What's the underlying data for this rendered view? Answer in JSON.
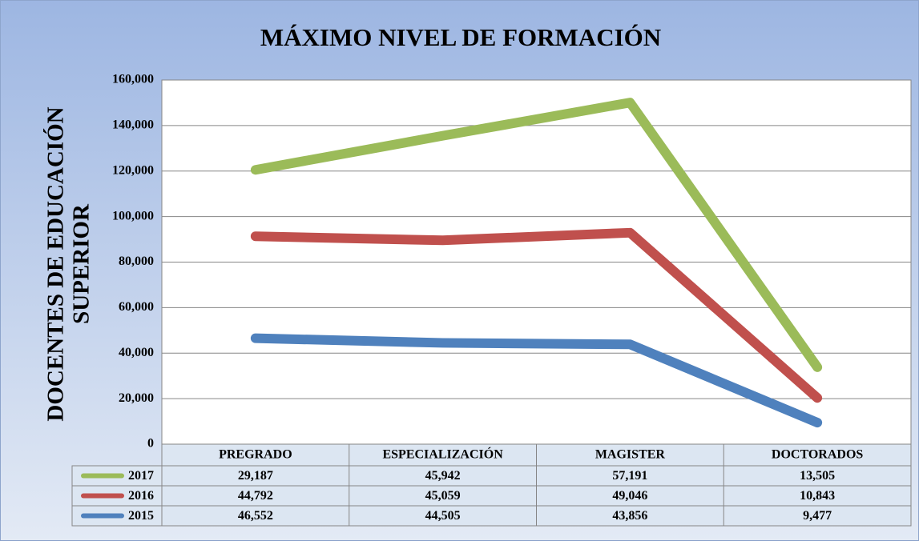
{
  "chart_data": {
    "type": "line",
    "stacked": true,
    "title": "MÁXIMO NIVEL DE FORMACIÓN",
    "y_label": [
      "DOCENTES DE EDUCACIÓN",
      "SUPERIOR"
    ],
    "categories": [
      "PREGRADO",
      "ESPECIALIZACIÓN",
      "MAGISTER",
      "DOCTORADOS"
    ],
    "series": [
      {
        "name": "2015",
        "color": "#4f81bd",
        "values": [
          46552,
          44505,
          43856,
          9477
        ],
        "value_labels": [
          "46,552",
          "44,505",
          "43,856",
          "9,477"
        ]
      },
      {
        "name": "2016",
        "color": "#c0504d",
        "values": [
          44792,
          45059,
          49046,
          10843
        ],
        "value_labels": [
          "44,792",
          "45,059",
          "49,046",
          "10,843"
        ]
      },
      {
        "name": "2017",
        "color": "#9bbb59",
        "values": [
          29187,
          45942,
          57191,
          13505
        ],
        "value_labels": [
          "29,187",
          "45,942",
          "57,191",
          "13,505"
        ]
      }
    ],
    "ylim": [
      0,
      160000
    ],
    "yticks": [
      0,
      {
        "value": 20000,
        "label": "20,000"
      },
      {
        "value": 40000,
        "label": "40,000"
      },
      {
        "value": 60000,
        "label": "60,000"
      },
      {
        "value": 80000,
        "label": "80,000"
      },
      {
        "value": 100000,
        "label": "100,000"
      },
      {
        "value": 120000,
        "label": "120,000"
      },
      {
        "value": 140000,
        "label": "140,000"
      },
      {
        "value": 160000,
        "label": "160,000"
      }
    ],
    "grid": true,
    "data_table": true
  }
}
